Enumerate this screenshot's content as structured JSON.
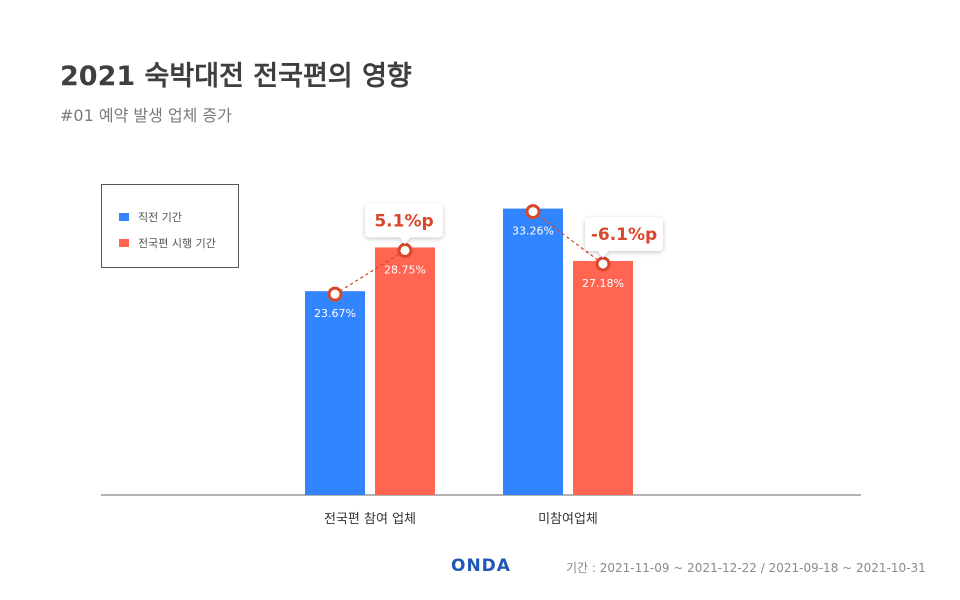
{
  "header": {
    "title": "2021 숙박대전 전국편의 영향",
    "subtitle": "#01 예약 발생 업체 증가"
  },
  "chart_data": {
    "type": "bar",
    "categories": [
      "전국편 참여 업체",
      "미참여업체"
    ],
    "series": [
      {
        "name": "직전 기간",
        "values": [
          23.67,
          33.26
        ],
        "labels": [
          "23.67%",
          "33.26%"
        ],
        "color": "#3385ff"
      },
      {
        "name": "전국편 시행 기간",
        "values": [
          28.75,
          27.18
        ],
        "labels": [
          "28.75%",
          "27.18%"
        ],
        "color": "#ff6550"
      }
    ],
    "annotations": [
      {
        "category": "전국편 참여 업체",
        "text": "5.1%p"
      },
      {
        "category": "미참여업체",
        "text": "-6.1%p"
      }
    ],
    "legend": "top-left",
    "grid": false,
    "ylim": [
      0,
      36
    ],
    "annotation_color": "#d9472b"
  },
  "footer": {
    "logo": "ONDA",
    "period": "기간 : 2021-11-09 ~ 2021-12-22 / 2021-09-18 ~ 2021-10-31"
  }
}
